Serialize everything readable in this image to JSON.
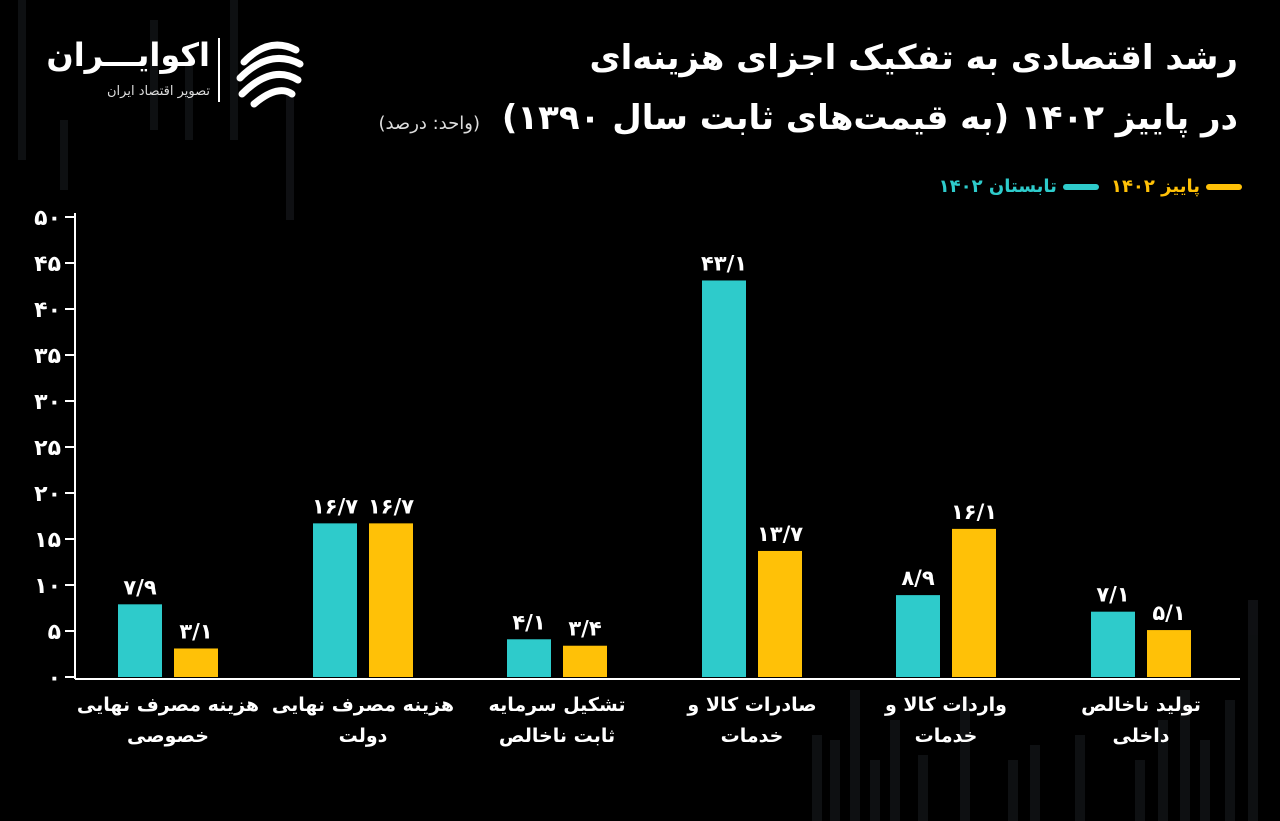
{
  "header": {
    "title_line1": "رشد اقتصادی به تفکیک اجزای هزینه‌ای",
    "title_line2": "در پاییز ۱۴۰۲ (به قیمت‌های ثابت سال ۱۳۹۰)",
    "unit": "(واحد: درصد)"
  },
  "logo": {
    "name": "اکوایـــران",
    "subtitle": "تصویر اقتصاد ایران",
    "icon": "ecoiran-logo-icon"
  },
  "colors": {
    "summer": "#2ecbcb",
    "autumn": "#ffc107",
    "axis": "#ffffff",
    "background": "#000000"
  },
  "chart_data": {
    "type": "bar",
    "categories": [
      "هزینه مصرف نهایی خصوصی",
      "هزینه مصرف نهایی دولت",
      "تشکیل سرمایه ثابت ناخالص",
      "صادرات کالا و خدمات",
      "واردات کالا و خدمات",
      "تولید ناخالص داخلی"
    ],
    "category_lines": [
      [
        "هزینه مصرف نهایی",
        "خصوصی"
      ],
      [
        "هزینه مصرف نهایی",
        "دولت"
      ],
      [
        "تشکیل سرمایه",
        "ثابت ناخالص"
      ],
      [
        "صادرات کالا و",
        "خدمات"
      ],
      [
        "واردات کالا و",
        "خدمات"
      ],
      [
        "تولید ناخالص",
        "داخلی"
      ]
    ],
    "series": [
      {
        "name": "تابستان ۱۴۰۲",
        "color": "#2ecbcb",
        "values": [
          7.9,
          16.7,
          4.1,
          43.1,
          8.9,
          7.1
        ],
        "labels": [
          "۷/۹",
          "۱۶/۷",
          "۴/۱",
          "۴۳/۱",
          "۸/۹",
          "۷/۱"
        ]
      },
      {
        "name": "پاییز ۱۴۰۲",
        "color": "#ffc107",
        "values": [
          3.1,
          16.7,
          3.4,
          13.7,
          16.1,
          5.1
        ],
        "labels": [
          "۳/۱",
          "۱۶/۷",
          "۳/۴",
          "۱۳/۷",
          "۱۶/۱",
          "۵/۱"
        ]
      }
    ],
    "ylim": [
      0,
      50
    ],
    "yticks": [
      0,
      5,
      10,
      15,
      20,
      25,
      30,
      35,
      40,
      45,
      50
    ],
    "ytick_labels": [
      "۰",
      "۵",
      "۱۰",
      "۱۵",
      "۲۰",
      "۲۵",
      "۳۰",
      "۳۵",
      "۴۰",
      "۴۵",
      "۵۰"
    ],
    "legend_position": "top-right",
    "grid": false
  }
}
